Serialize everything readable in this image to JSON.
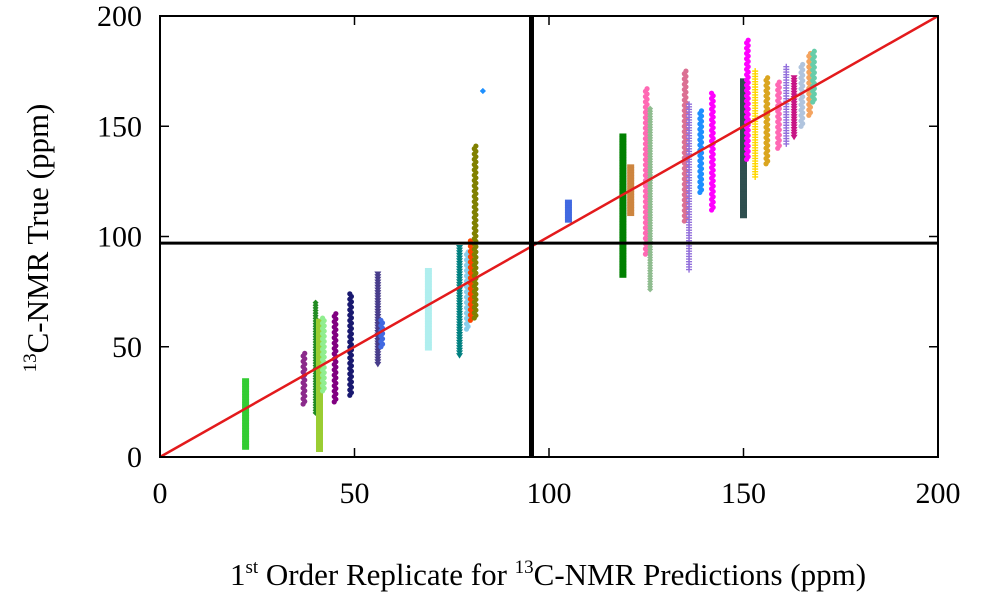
{
  "chart_data": {
    "type": "scatter",
    "title": "",
    "xlabel": {
      "sup1": "st",
      "part1": " Order Replicate for ",
      "pre": "1",
      "sup2": "13",
      "part2": "C-NMR Predictions (ppm)"
    },
    "ylabel": {
      "sup": "13",
      "text": "C-NMR True (ppm)"
    },
    "xlim": [
      0,
      200
    ],
    "ylim": [
      0,
      200
    ],
    "x_ticks": [
      "0",
      "50",
      "100",
      "150",
      "200"
    ],
    "y_ticks": [
      "0",
      "50",
      "100",
      "150",
      "200"
    ],
    "reference_line": {
      "from": [
        0,
        0
      ],
      "to": [
        200,
        200
      ],
      "color": "#e31a1c"
    },
    "threshold_x": 95.5,
    "threshold_y": 97,
    "grid": false,
    "legend": "none",
    "series": [
      {
        "x": 22,
        "y_min": 4,
        "y_max": 35,
        "color": "#33cc33",
        "marker": "bar"
      },
      {
        "x": 37,
        "y_min": 24,
        "y_max": 47,
        "color": "#8b2a8b",
        "marker": "circle"
      },
      {
        "x": 40,
        "y_min": 20,
        "y_max": 70,
        "color": "#228b22",
        "marker": "diamond"
      },
      {
        "x": 41,
        "y_min": 3,
        "y_max": 62,
        "color": "#9acd32",
        "marker": "bar"
      },
      {
        "x": 42,
        "y_min": 30,
        "y_max": 63,
        "color": "#90ee90",
        "marker": "circle"
      },
      {
        "x": 45,
        "y_min": 25,
        "y_max": 65,
        "color": "#800080",
        "marker": "circle"
      },
      {
        "x": 49,
        "y_min": 28,
        "y_max": 74,
        "color": "#191970",
        "marker": "circle"
      },
      {
        "x": 56,
        "y_min": 42,
        "y_max": 83,
        "color": "#483d8b",
        "marker": "triangle"
      },
      {
        "x": 57,
        "y_min": 50,
        "y_max": 62,
        "color": "#4169e1",
        "marker": "circle"
      },
      {
        "x": 69,
        "y_min": 49,
        "y_max": 85,
        "color": "#afeeee",
        "marker": "bar"
      },
      {
        "x": 77,
        "y_min": 46,
        "y_max": 95,
        "color": "#008080",
        "marker": "triangle"
      },
      {
        "x": 79,
        "y_min": 58,
        "y_max": 93,
        "color": "#87ceeb",
        "marker": "circle"
      },
      {
        "x": 80,
        "y_min": 62,
        "y_max": 98,
        "color": "#ff4500",
        "marker": "circle"
      },
      {
        "x": 81,
        "y_min": 63,
        "y_max": 141,
        "color": "#808000",
        "marker": "circle"
      },
      {
        "x": 83,
        "y_min": 166,
        "y_max": 166,
        "color": "#1e90ff",
        "marker": "diamond"
      },
      {
        "x": 105,
        "y_min": 107,
        "y_max": 116,
        "color": "#4169e1",
        "marker": "bar"
      },
      {
        "x": 119,
        "y_min": 82,
        "y_max": 146,
        "color": "#008000",
        "marker": "bar"
      },
      {
        "x": 121,
        "y_min": 110,
        "y_max": 132,
        "color": "#cd853f",
        "marker": "bar"
      },
      {
        "x": 125,
        "y_min": 92,
        "y_max": 167,
        "color": "#ff69b4",
        "marker": "circle"
      },
      {
        "x": 126,
        "y_min": 76,
        "y_max": 158,
        "color": "#8fbc8f",
        "marker": "diamond"
      },
      {
        "x": 135,
        "y_min": 107,
        "y_max": 175,
        "color": "#db7093",
        "marker": "circle"
      },
      {
        "x": 136,
        "y_min": 85,
        "y_max": 160,
        "color": "#9370db",
        "marker": "plus"
      },
      {
        "x": 139,
        "y_min": 120,
        "y_max": 157,
        "color": "#1e90ff",
        "marker": "circle"
      },
      {
        "x": 142,
        "y_min": 112,
        "y_max": 165,
        "color": "#ff00ff",
        "marker": "circle"
      },
      {
        "x": 150,
        "y_min": 109,
        "y_max": 171,
        "color": "#2f4f4f",
        "marker": "bar"
      },
      {
        "x": 151,
        "y_min": 135,
        "y_max": 189,
        "color": "#ff00ff",
        "marker": "circle"
      },
      {
        "x": 153,
        "y_min": 127,
        "y_max": 175,
        "color": "#ffd700",
        "marker": "plus"
      },
      {
        "x": 156,
        "y_min": 133,
        "y_max": 172,
        "color": "#daa520",
        "marker": "circle"
      },
      {
        "x": 159,
        "y_min": 140,
        "y_max": 170,
        "color": "#ff69b4",
        "marker": "circle"
      },
      {
        "x": 161,
        "y_min": 142,
        "y_max": 177,
        "color": "#9370db",
        "marker": "plus"
      },
      {
        "x": 163,
        "y_min": 145,
        "y_max": 172,
        "color": "#c71585",
        "marker": "triangle"
      },
      {
        "x": 165,
        "y_min": 150,
        "y_max": 178,
        "color": "#b0c4de",
        "marker": "circle"
      },
      {
        "x": 167,
        "y_min": 155,
        "y_max": 183,
        "color": "#f4a460",
        "marker": "circle"
      },
      {
        "x": 168,
        "y_min": 161,
        "y_max": 184,
        "color": "#66cdaa",
        "marker": "circle"
      }
    ]
  }
}
